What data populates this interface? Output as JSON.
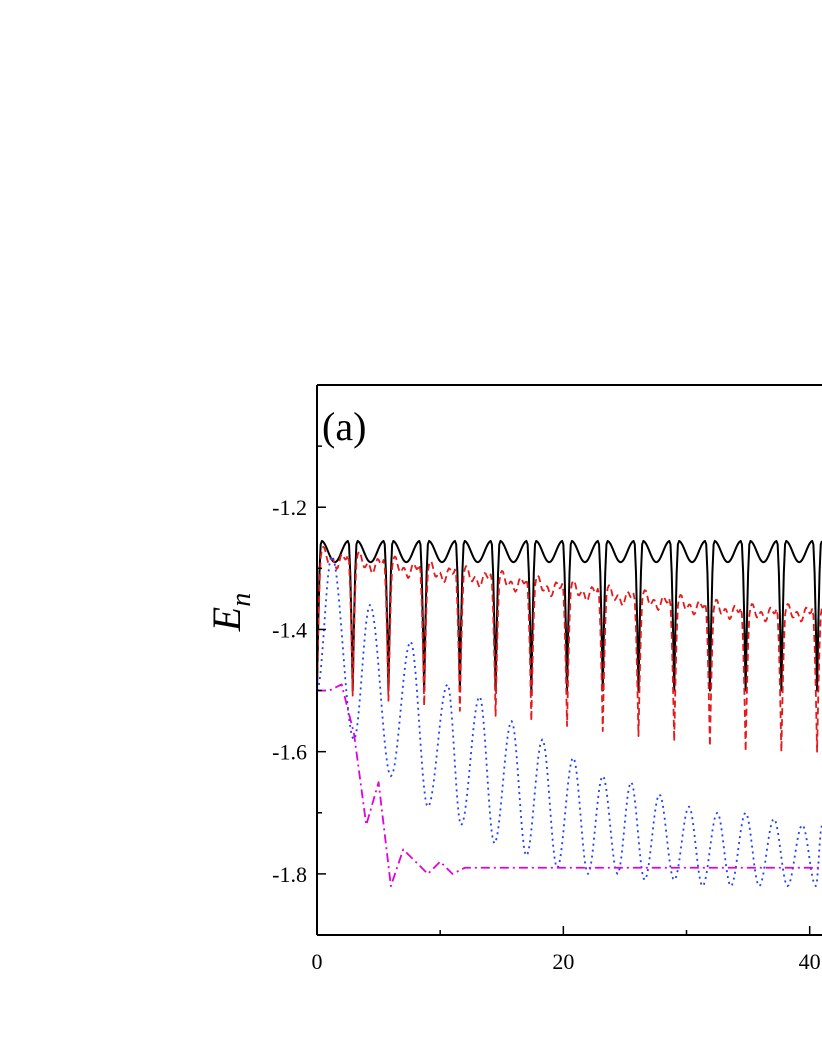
{
  "chart_data": {
    "type": "line",
    "panel_label": "(a)",
    "ylabel": {
      "main": "E",
      "sub": "n"
    },
    "xlabel": "",
    "xlim": [
      0,
      41
    ],
    "ylim": [
      -1.9,
      -1.0
    ],
    "x_ticks": [
      0,
      20,
      40
    ],
    "x_tick_labels": [
      "0",
      "20",
      "40"
    ],
    "y_ticks": [
      -1.2,
      -1.4,
      -1.6,
      -1.8
    ],
    "y_tick_labels": [
      "-1.2",
      "-1.4",
      "-1.6",
      "-1.8"
    ],
    "grid": false,
    "legend": "none",
    "series": [
      {
        "style": "solid",
        "color": "#000000",
        "sample_step": 0.1,
        "description_model": {
          "baseline": -1.5,
          "top": -1.255,
          "mid_dip": -1.29,
          "period": 2.9
        }
      },
      {
        "style": "dashed",
        "color": "#e41a1c",
        "sample_step": 0.1,
        "description_model": {
          "top_start": -1.27,
          "top_end": -1.365,
          "mid_dip_start": -1.29,
          "mid_dip_end": -1.38,
          "bottom_start": -1.5,
          "bottom_end": -1.6,
          "period": 2.9
        }
      },
      {
        "style": "dotted",
        "color": "#1f3fff",
        "sample_step": 0.1,
        "description_model": {
          "peaks": [
            [
              1.2,
              -1.28
            ],
            [
              4.3,
              -1.36
            ],
            [
              7.6,
              -1.42
            ],
            [
              10.6,
              -1.49
            ],
            [
              13.2,
              -1.51
            ],
            [
              15.8,
              -1.55
            ],
            [
              18.3,
              -1.58
            ],
            [
              20.8,
              -1.61
            ],
            [
              23.2,
              -1.64
            ],
            [
              25.5,
              -1.65
            ],
            [
              27.8,
              -1.67
            ],
            [
              30.2,
              -1.69
            ],
            [
              32.5,
              -1.7
            ],
            [
              34.8,
              -1.7
            ],
            [
              37.1,
              -1.71
            ],
            [
              39.4,
              -1.72
            ],
            [
              41,
              -1.72
            ]
          ],
          "troughs": [
            [
              0,
              -1.5
            ],
            [
              3.0,
              -1.58
            ],
            [
              6.0,
              -1.64
            ],
            [
              9.0,
              -1.69
            ],
            [
              11.7,
              -1.72
            ],
            [
              14.4,
              -1.75
            ],
            [
              17.0,
              -1.77
            ],
            [
              19.5,
              -1.79
            ],
            [
              22.0,
              -1.8
            ],
            [
              24.4,
              -1.8
            ],
            [
              26.6,
              -1.81
            ],
            [
              29.0,
              -1.81
            ],
            [
              31.3,
              -1.82
            ],
            [
              33.6,
              -1.82
            ],
            [
              35.9,
              -1.82
            ],
            [
              38.2,
              -1.82
            ],
            [
              40.5,
              -1.82
            ]
          ]
        }
      },
      {
        "style": "dash-dot",
        "color": "#e000e0",
        "points": [
          [
            0,
            -1.5
          ],
          [
            1,
            -1.5
          ],
          [
            2,
            -1.49
          ],
          [
            3,
            -1.57
          ],
          [
            4,
            -1.72
          ],
          [
            5,
            -1.65
          ],
          [
            6,
            -1.82
          ],
          [
            7,
            -1.76
          ],
          [
            8,
            -1.78
          ],
          [
            9,
            -1.8
          ],
          [
            10,
            -1.78
          ],
          [
            11,
            -1.8
          ],
          [
            12,
            -1.79
          ],
          [
            13,
            -1.79
          ],
          [
            14,
            -1.79
          ],
          [
            15,
            -1.79
          ],
          [
            20,
            -1.79
          ],
          [
            25,
            -1.79
          ],
          [
            30,
            -1.79
          ],
          [
            35,
            -1.79
          ],
          [
            41,
            -1.79
          ]
        ]
      }
    ]
  }
}
